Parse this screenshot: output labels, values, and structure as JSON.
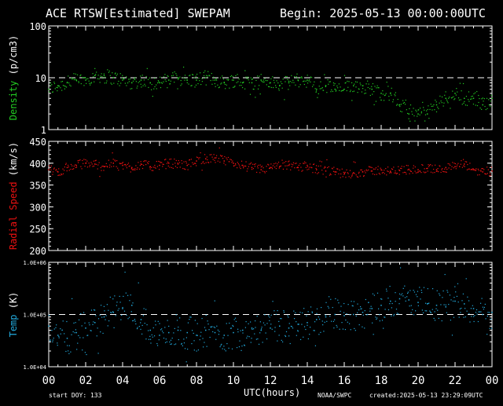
{
  "header": {
    "title": "ACE RTSW[Estimated] SWEPAM",
    "begin": "Begin: 2025-05-13 00:00:00UTC"
  },
  "footer": {
    "start_doy": "start DOY: 133",
    "xlabel": "UTC(hours)",
    "credit": "NOAA/SWPC",
    "created": "created:2025-05-13 23:29:09UTC"
  },
  "colors": {
    "density": "#22cc22",
    "speed": "#ee1111",
    "temp": "#22aadd",
    "axis": "#ffffff",
    "background": "#000000"
  },
  "chart_data": [
    {
      "type": "scatter",
      "ylabel_parts": [
        "Density",
        " (p/cm3)"
      ],
      "yscale": "log",
      "ylim": [
        1,
        100
      ],
      "yticks": [
        {
          "value": 1,
          "label": "1"
        },
        {
          "value": 10,
          "label": "10"
        },
        {
          "value": 100,
          "label": "100"
        }
      ],
      "reference_line": 10,
      "xlim": [
        0,
        24
      ],
      "series": [
        {
          "x": [
            0,
            0.5,
            1,
            1.5,
            2,
            2.5,
            3,
            3.5,
            4,
            4.5,
            5,
            5.5,
            6,
            6.5,
            7,
            7.5,
            8,
            8.5,
            9,
            9.5,
            10,
            10.5,
            11,
            11.5,
            12,
            12.5,
            13,
            13.5,
            14,
            14.5,
            15,
            15.5,
            16,
            16.5,
            17,
            17.5,
            18,
            18.5,
            19,
            19.5,
            20,
            20.5,
            21,
            21.5,
            22,
            22.5,
            23,
            23.5,
            24
          ],
          "y": [
            6,
            7,
            8,
            9,
            9,
            11,
            11,
            10,
            9,
            8,
            9,
            8,
            8,
            9,
            10,
            9,
            9,
            10,
            9,
            8,
            9,
            8,
            8,
            9,
            8,
            7,
            8,
            9,
            9,
            6,
            7,
            6,
            6,
            7,
            7,
            6,
            5,
            5,
            3,
            2,
            2,
            2,
            3,
            4,
            5,
            4,
            4,
            3,
            4
          ]
        }
      ]
    },
    {
      "type": "scatter",
      "ylabel_parts": [
        "Radial Speed",
        " (km/s)"
      ],
      "yscale": "linear",
      "ylim": [
        200,
        450
      ],
      "yticks": [
        {
          "value": 200,
          "label": "200"
        },
        {
          "value": 250,
          "label": "250"
        },
        {
          "value": 300,
          "label": "300"
        },
        {
          "value": 350,
          "label": "350"
        },
        {
          "value": 400,
          "label": "400"
        },
        {
          "value": 450,
          "label": "450"
        }
      ],
      "xlim": [
        0,
        24
      ],
      "series": [
        {
          "x": [
            0,
            0.5,
            1,
            1.5,
            2,
            2.5,
            3,
            3.5,
            4,
            4.5,
            5,
            5.5,
            6,
            6.5,
            7,
            7.5,
            8,
            8.5,
            9,
            9.5,
            10,
            10.5,
            11,
            11.5,
            12,
            12.5,
            13,
            13.5,
            14,
            14.5,
            15,
            15.5,
            16,
            16.5,
            17,
            17.5,
            18,
            18.5,
            19,
            19.5,
            20,
            20.5,
            21,
            21.5,
            22,
            22.5,
            23,
            23.5,
            24
          ],
          "y": [
            385,
            380,
            390,
            395,
            400,
            398,
            392,
            400,
            395,
            390,
            398,
            392,
            395,
            400,
            398,
            395,
            405,
            410,
            412,
            405,
            400,
            395,
            390,
            385,
            390,
            392,
            395,
            390,
            395,
            385,
            382,
            380,
            375,
            378,
            380,
            382,
            385,
            380,
            383,
            386,
            385,
            388,
            385,
            390,
            392,
            398,
            385,
            380,
            382
          ]
        }
      ]
    },
    {
      "type": "scatter",
      "ylabel_parts": [
        "Temp",
        " (K)"
      ],
      "yscale": "log",
      "ylim": [
        10000,
        1000000
      ],
      "yticks": [
        {
          "value": 10000,
          "label": "1.0E+04"
        },
        {
          "value": 100000,
          "label": "1.0E+05"
        },
        {
          "value": 1000000,
          "label": "1.0E+06"
        }
      ],
      "reference_line": 100000,
      "xlim": [
        0,
        24
      ],
      "xticks": [
        "00",
        "02",
        "04",
        "06",
        "08",
        "10",
        "12",
        "14",
        "16",
        "18",
        "20",
        "22",
        "00"
      ],
      "series": [
        {
          "x": [
            0,
            0.5,
            1,
            1.5,
            2,
            2.5,
            3,
            3.5,
            4,
            4.5,
            5,
            5.5,
            6,
            6.5,
            7,
            7.5,
            8,
            8.5,
            9,
            9.5,
            10,
            10.5,
            11,
            11.5,
            12,
            12.5,
            13,
            13.5,
            14,
            14.5,
            15,
            15.5,
            16,
            16.5,
            17,
            17.5,
            18,
            18.5,
            19,
            19.5,
            20,
            20.5,
            21,
            21.5,
            22,
            22.5,
            23,
            23.5,
            24
          ],
          "y": [
            60000,
            40000,
            35000,
            45000,
            55000,
            70000,
            90000,
            110000,
            130000,
            150000,
            80000,
            50000,
            40000,
            45000,
            50000,
            45000,
            40000,
            50000,
            45000,
            40000,
            45000,
            50000,
            55000,
            50000,
            55000,
            60000,
            55000,
            65000,
            70000,
            80000,
            90000,
            100000,
            95000,
            100000,
            110000,
            130000,
            150000,
            180000,
            200000,
            190000,
            170000,
            160000,
            150000,
            140000,
            180000,
            160000,
            130000,
            100000,
            110000
          ]
        }
      ]
    }
  ]
}
